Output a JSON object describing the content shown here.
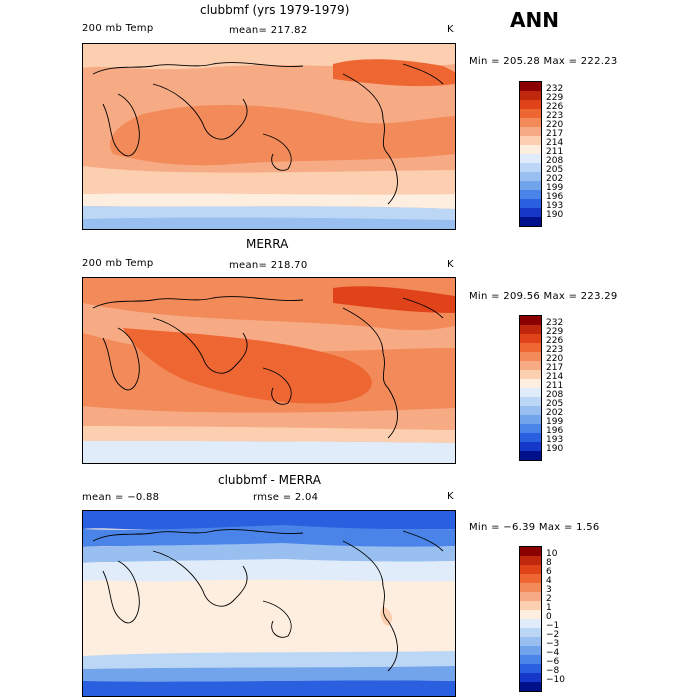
{
  "season": "ANN",
  "panels": [
    {
      "title": "clubbmf (yrs 1979-1979)",
      "left_label": "200 mb Temp",
      "center_label": "mean= 217.82",
      "units": "K",
      "minmax": "Min = 205.28 Max = 222.23",
      "ticks": [
        "232",
        "229",
        "226",
        "223",
        "220",
        "217",
        "214",
        "211",
        "208",
        "205",
        "202",
        "199",
        "196",
        "193",
        "190"
      ]
    },
    {
      "title": "MERRA",
      "left_label": "200 mb Temp",
      "center_label": "mean= 218.70",
      "units": "K",
      "minmax": "Min = 209.56 Max = 223.29",
      "ticks": [
        "232",
        "229",
        "226",
        "223",
        "220",
        "217",
        "214",
        "211",
        "208",
        "205",
        "202",
        "199",
        "196",
        "193",
        "190"
      ]
    },
    {
      "title": "clubbmf - MERRA",
      "left_label": "mean = −0.88",
      "center_label": "rmse = 2.04",
      "units": "K",
      "minmax": "Min = −6.39 Max = 1.56",
      "ticks": [
        "10",
        "8",
        "6",
        "4",
        "3",
        "2",
        "1",
        "0",
        "−1",
        "−2",
        "−3",
        "−4",
        "−6",
        "−8",
        "−10"
      ]
    }
  ],
  "colors": {
    "scale": [
      "#8b0000",
      "#c0280e",
      "#e0421a",
      "#ee6632",
      "#f28a5a",
      "#f7ab85",
      "#fbcfb0",
      "#fdeee0",
      "#e0ecfa",
      "#bcd6f5",
      "#98bff0",
      "#72a4ec",
      "#4a84e8",
      "#2a5fe0",
      "#1538c8",
      "#000f8a"
    ]
  }
}
